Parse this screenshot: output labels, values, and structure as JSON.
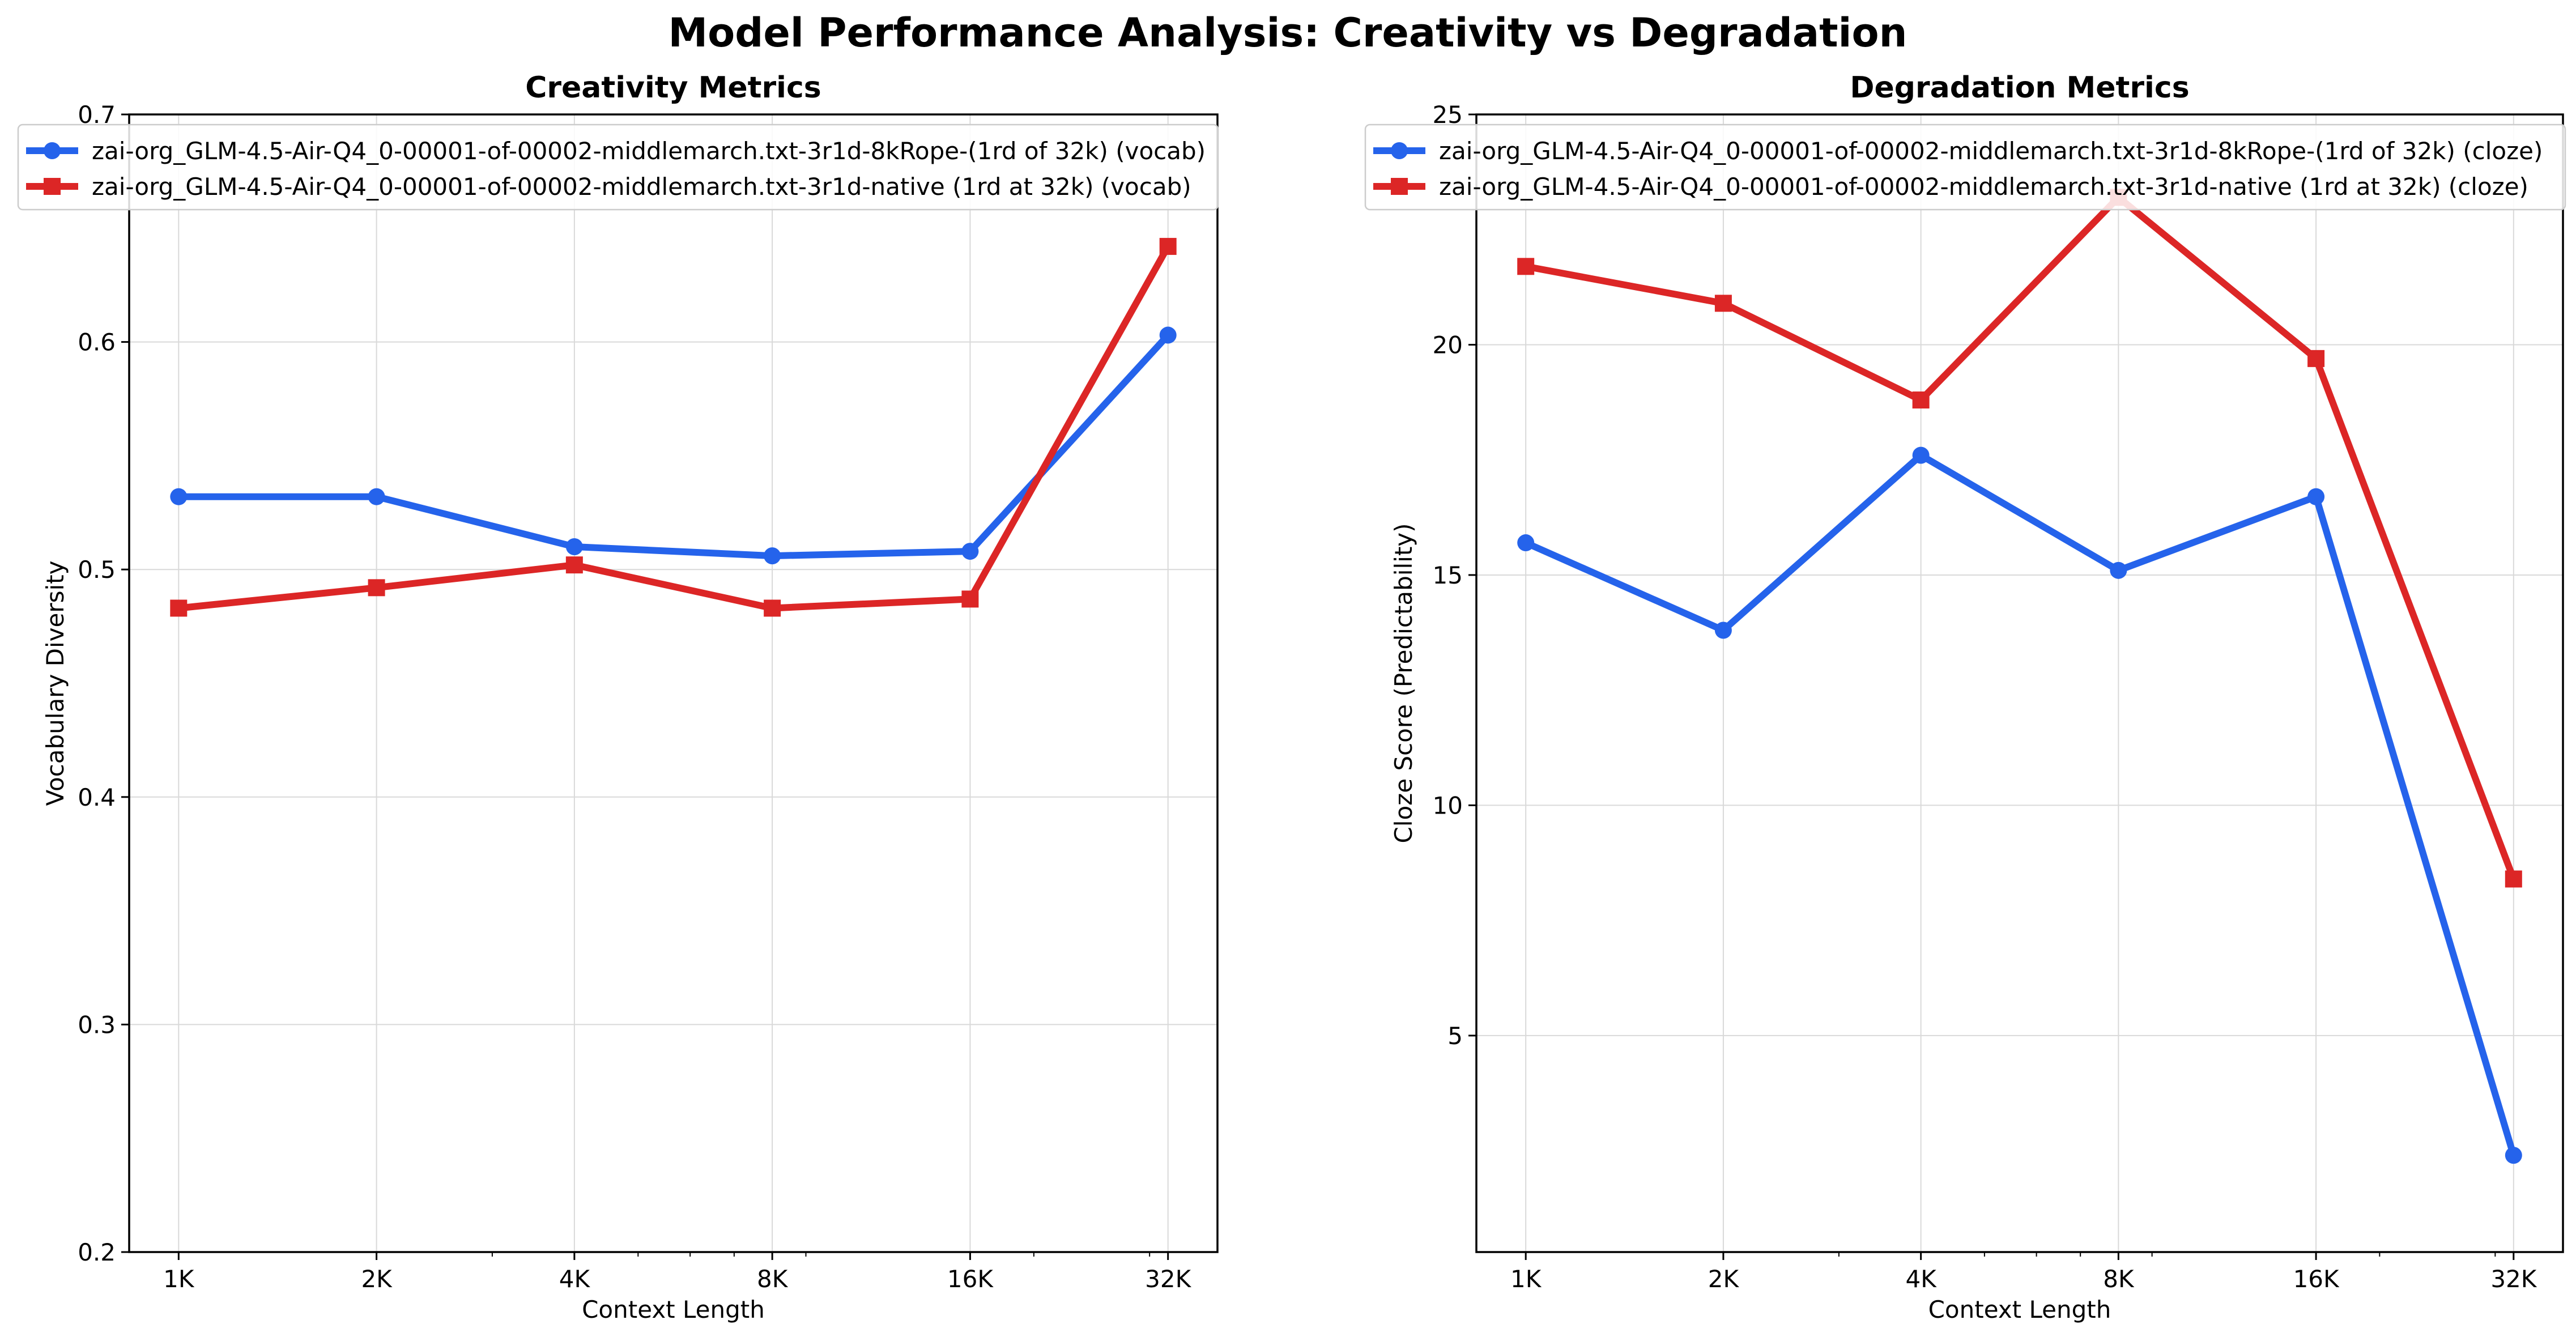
{
  "figure": {
    "title": "Model Performance Analysis: Creativity vs Degradation"
  },
  "chart_data": [
    {
      "type": "line",
      "title": "Creativity Metrics",
      "xlabel": "Context Length",
      "ylabel": "Vocabulary Diversity",
      "x_scale": "log2",
      "categories": [
        "1K",
        "2K",
        "4K",
        "8K",
        "16K",
        "32K"
      ],
      "x": [
        1,
        2,
        4,
        8,
        16,
        32
      ],
      "ylim": [
        0.2,
        0.7
      ],
      "yticks": [
        0.2,
        0.3,
        0.4,
        0.5,
        0.6,
        0.7
      ],
      "ytick_labels": [
        "0.2",
        "0.3",
        "0.4",
        "0.5",
        "0.6",
        "0.7"
      ],
      "grid": true,
      "legend_position": "upper-left",
      "series": [
        {
          "name": "zai-org_GLM-4.5-Air-Q4_0-00001-of-00002-middlemarch.txt-3r1d-8kRope-(1rd of 32k) (vocab)",
          "color": "#2563eb",
          "marker": "circle",
          "values": [
            0.532,
            0.532,
            0.51,
            0.506,
            0.508,
            0.603
          ]
        },
        {
          "name": "zai-org_GLM-4.5-Air-Q4_0-00001-of-00002-middlemarch.txt-3r1d-native (1rd at 32k) (vocab)",
          "color": "#dc2626",
          "marker": "square",
          "values": [
            0.483,
            0.492,
            0.502,
            0.483,
            0.487,
            0.642
          ]
        }
      ]
    },
    {
      "type": "line",
      "title": "Degradation Metrics",
      "xlabel": "Context Length",
      "ylabel": "Cloze Score (Predictability)",
      "x_scale": "log2",
      "categories": [
        "1K",
        "2K",
        "4K",
        "8K",
        "16K",
        "32K"
      ],
      "x": [
        1,
        2,
        4,
        8,
        16,
        32
      ],
      "ylim": [
        0.3,
        25
      ],
      "yticks": [
        5,
        10,
        15,
        20,
        25
      ],
      "ytick_labels": [
        "5",
        "10",
        "15",
        "20",
        "25"
      ],
      "grid": true,
      "legend_position": "upper-left",
      "series": [
        {
          "name": "zai-org_GLM-4.5-Air-Q4_0-00001-of-00002-middlemarch.txt-3r1d-8kRope-(1rd of 32k) (cloze)",
          "color": "#2563eb",
          "marker": "circle",
          "values": [
            15.7,
            13.8,
            17.6,
            15.1,
            16.7,
            2.4
          ]
        },
        {
          "name": "zai-org_GLM-4.5-Air-Q4_0-00001-of-00002-middlemarch.txt-3r1d-native (1rd at 32k) (cloze)",
          "color": "#dc2626",
          "marker": "square",
          "values": [
            21.7,
            20.9,
            18.8,
            23.2,
            19.7,
            8.4
          ]
        }
      ]
    }
  ]
}
